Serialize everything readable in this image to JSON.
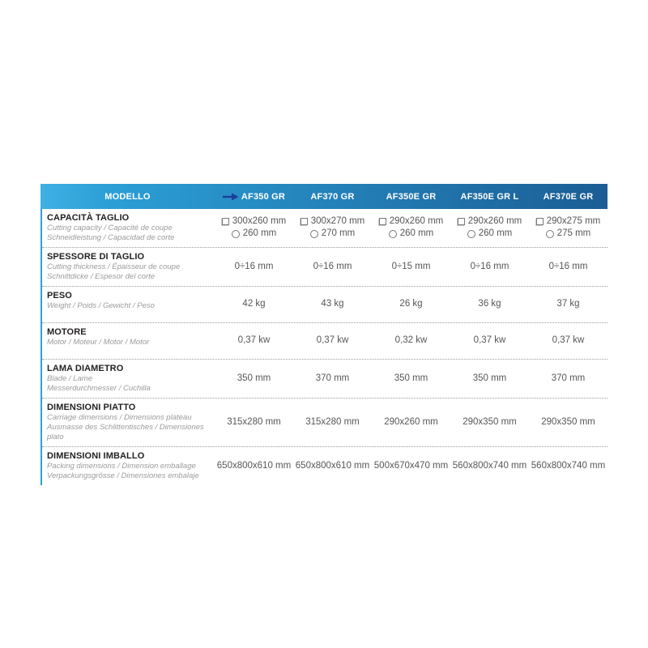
{
  "colors": {
    "header_gradient_left": "#3fb0e2",
    "header_gradient_right": "#1b5d95",
    "header_text": "#ffffff",
    "accent_left_border": "#2aa2da",
    "row_title": "#231f20",
    "row_subtitle": "#9b9b9d",
    "value_text": "#555658",
    "arrow": "#1e3d9b",
    "dotted_divider": "#9c9c9c"
  },
  "header": {
    "label_col": "MODELLO",
    "columns": [
      "AF350 GR",
      "AF370 GR",
      "AF350E GR",
      "AF350E GR L",
      "AF370E GR"
    ],
    "highlighted_column_index": 0,
    "arrow_icon": "right-arrow"
  },
  "rows": [
    {
      "type": "capacity",
      "title": "CAPACITÀ TAGLIO",
      "subtitles": [
        "Cutting capacity / Capacité de coupe",
        "Schneidleistung / Capacidad de corte"
      ],
      "cells": [
        {
          "square": "300x260 mm",
          "circle": "260 mm"
        },
        {
          "square": "300x270 mm",
          "circle": "270 mm"
        },
        {
          "square": "290x260 mm",
          "circle": "260 mm"
        },
        {
          "square": "290x260 mm",
          "circle": "260 mm"
        },
        {
          "square": "290x275 mm",
          "circle": "275 mm"
        }
      ]
    },
    {
      "type": "simple",
      "title": "SPESSORE DI TAGLIO",
      "subtitles": [
        "Cutting thickness / Épaisseur de coupe",
        "Schnittdicke / Espesor del corte"
      ],
      "cells": [
        "0÷16 mm",
        "0÷16 mm",
        "0÷15 mm",
        "0÷16 mm",
        "0÷16 mm"
      ]
    },
    {
      "type": "simple",
      "title": "PESO",
      "subtitles": [
        "Weight / Poids / Gewicht / Peso"
      ],
      "cells": [
        "42 kg",
        "43 kg",
        "26 kg",
        "36 kg",
        "37 kg"
      ]
    },
    {
      "type": "simple",
      "title": "MOTORE",
      "subtitles": [
        "Motor / Moteur / Motor / Motor"
      ],
      "cells": [
        "0,37 kw",
        "0,37 kw",
        "0,32 kw",
        "0,37 kw",
        "0,37 kw"
      ]
    },
    {
      "type": "simple",
      "title": "LAMA DIAMETRO",
      "subtitles": [
        "Blade / Lame",
        "Messerdurchmesser / Cuchilla"
      ],
      "cells": [
        "350 mm",
        "370 mm",
        "350 mm",
        "350 mm",
        "370 mm"
      ]
    },
    {
      "type": "simple",
      "title": "DIMENSIONI PIATTO",
      "subtitles": [
        "Carriage dimensions / Dimensions plateau",
        "Ausmasse des Schlittentisches / Dimensiones plato"
      ],
      "cells": [
        "315x280 mm",
        "315x280 mm",
        "290x260 mm",
        "290x350 mm",
        "290x350 mm"
      ]
    },
    {
      "type": "simple",
      "title": "DIMENSIONI IMBALLO",
      "subtitles": [
        "Packing dimensions / Dimension emballage",
        "Verpackungsgrösse / Dimensiones embalaje"
      ],
      "cells": [
        "650x800x610 mm",
        "650x800x610 mm",
        "500x670x470 mm",
        "560x800x740 mm",
        "560x800x740 mm"
      ]
    }
  ]
}
